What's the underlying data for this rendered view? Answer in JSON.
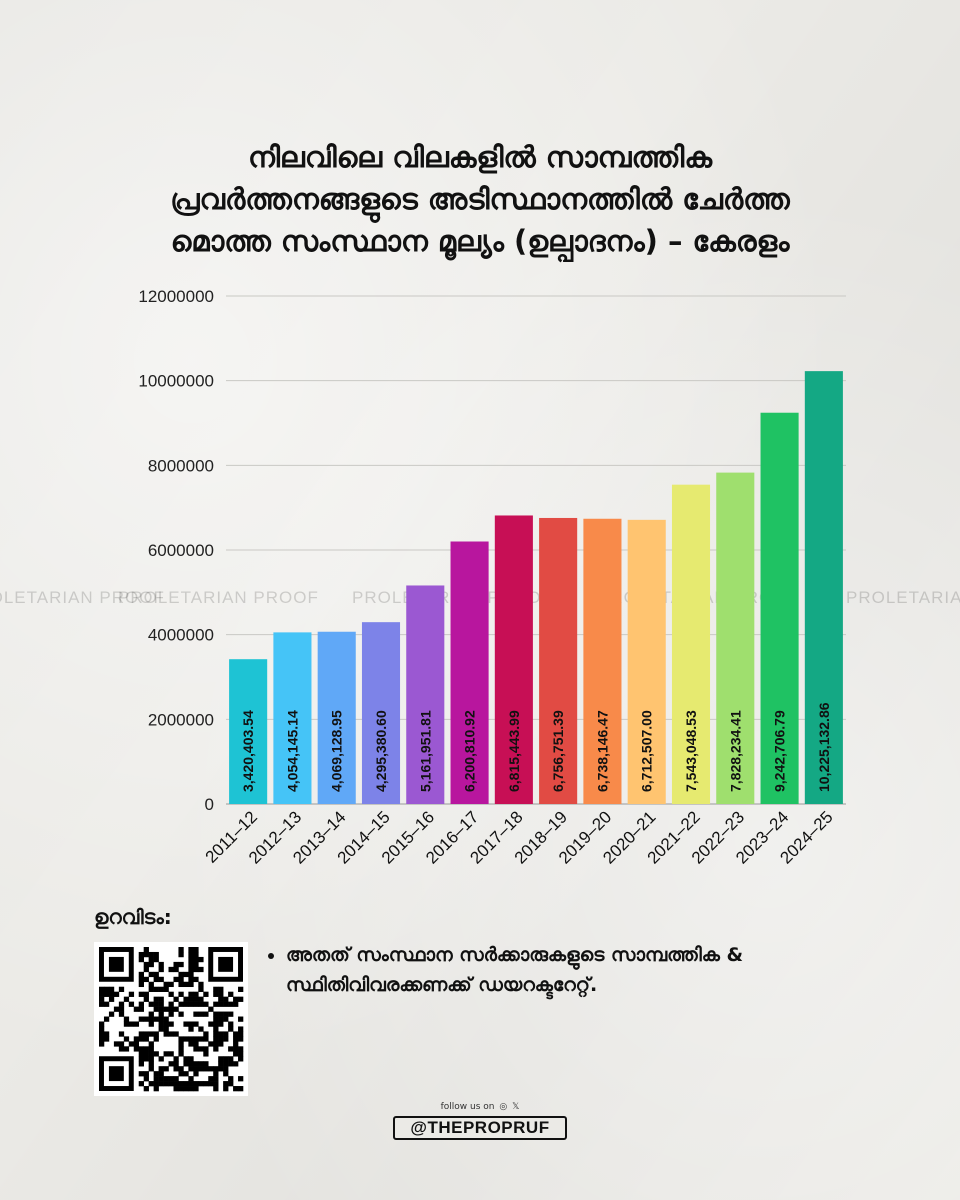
{
  "title_lines": [
    "നിലവിലെ വിലകളിൽ സാമ്പത്തിക",
    "പ്രവർത്തനങ്ങളുടെ അടിസ്ഥാനത്തിൽ ചേർത്ത",
    "മൊത്ത സംസ്ഥാന മൂല്യം (ഉല്പാദനം) – കേരളം"
  ],
  "watermark": "PROLETARIAN PROOF",
  "chart_data": {
    "type": "bar",
    "title": "നിലവിലെ വിലകളിൽ സാമ്പത്തിക പ്രവർത്തനങ്ങളുടെ അടിസ്ഥാനത്തിൽ ചേർത്ത മൊത്ത സംസ്ഥാന മൂല്യം (ഉല്പാദനം) – കേരളം",
    "xlabel": "",
    "ylabel": "",
    "categories": [
      "2011–12",
      "2012–13",
      "2013–14",
      "2014–15",
      "2015–16",
      "2016–17",
      "2017–18",
      "2018–19",
      "2019–20",
      "2020–21",
      "2021–22",
      "2022–23",
      "2023–24",
      "2024–25"
    ],
    "values": [
      3420403.54,
      4054145.14,
      4069128.95,
      4295380.6,
      5161951.81,
      6200810.92,
      6815443.99,
      6756751.39,
      6738146.47,
      6712507.0,
      7543048.53,
      7828234.41,
      9242706.79,
      10225132.86
    ],
    "value_labels": [
      "3,420,403.54",
      "4,054,145.14",
      "4,069,128.95",
      "4,295,380.60",
      "5,161,951.81",
      "6,200,810.92",
      "6,815,443.99",
      "6,756,751.39",
      "6,738,146.47",
      "6,712,507.00",
      "7,543,048.53",
      "7,828,234.41",
      "9,242,706.79",
      "10,225,132.86"
    ],
    "bar_colors": [
      "#1ec3d4",
      "#45c4f7",
      "#60a8f7",
      "#7d83e8",
      "#9b58d2",
      "#b8169e",
      "#c70f55",
      "#e14b44",
      "#f88a4a",
      "#ffc470",
      "#e6ea70",
      "#9fdf6e",
      "#1fc263",
      "#14a884"
    ],
    "y_ticks": [
      0,
      2000000,
      4000000,
      6000000,
      8000000,
      10000000,
      12000000
    ],
    "y_tick_labels": [
      "0",
      "2000000",
      "4000000",
      "6000000",
      "8000000",
      "10000000",
      "12000000"
    ],
    "ylim": [
      0,
      12000000
    ],
    "grid": true,
    "legend": "none"
  },
  "source": {
    "label": "ഉറവിടം:",
    "items": [
      "അതത് സംസ്ഥാന സർക്കാരുകളുടെ സാമ്പത്തിക & സ്ഥിതിവിവരക്കണക്ക് ഡയറക്ടറേറ്റ്."
    ]
  },
  "footer": {
    "follow_text": "follow us on",
    "social_icons": [
      "instagram-icon",
      "x-icon"
    ],
    "handle": "@THEPROPRUF"
  }
}
